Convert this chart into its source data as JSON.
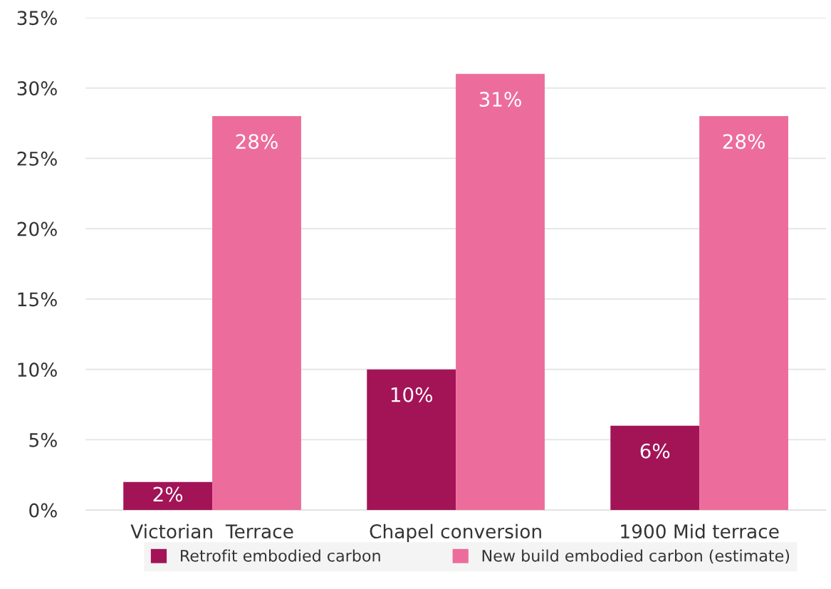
{
  "chart_data": {
    "type": "bar",
    "categories": [
      "Victorian  Terrace",
      "Chapel conversion",
      "1900 Mid terrace"
    ],
    "series": [
      {
        "name": "Retrofit embodied carbon",
        "color": "#a31457",
        "values": [
          2,
          10,
          6
        ],
        "value_labels": [
          "2%",
          "10%",
          "6%"
        ]
      },
      {
        "name": "New build embodied carbon (estimate)",
        "color": "#ec6d9b",
        "values": [
          28,
          31,
          28
        ],
        "value_labels": [
          "28%",
          "31%",
          "28%"
        ]
      }
    ],
    "ylim": [
      0,
      35
    ],
    "yticks": [
      {
        "value": 0,
        "label": "0%"
      },
      {
        "value": 5,
        "label": "5%"
      },
      {
        "value": 10,
        "label": "10%"
      },
      {
        "value": 15,
        "label": "15%"
      },
      {
        "value": 20,
        "label": "20%"
      },
      {
        "value": 25,
        "label": "25%"
      },
      {
        "value": 30,
        "label": "30%"
      },
      {
        "value": 35,
        "label": "35%"
      }
    ],
    "grid": "y",
    "legend": "bottom"
  }
}
